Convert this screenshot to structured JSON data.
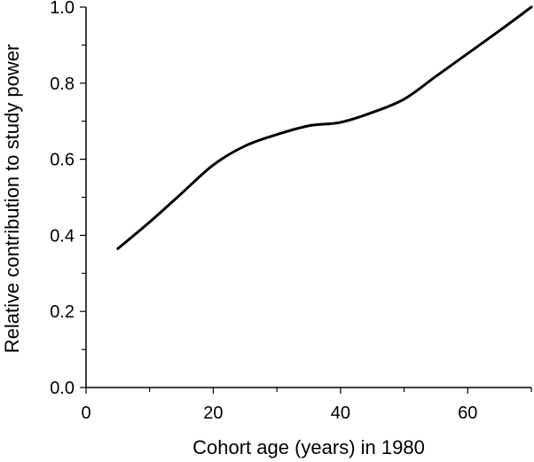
{
  "chart_data": {
    "type": "line",
    "title": "",
    "xlabel": "Cohort age (years) in 1980",
    "ylabel": "Relative contribution to study power",
    "xlim": [
      0,
      70
    ],
    "ylim": [
      0.0,
      1.0
    ],
    "x_ticks_major": [
      0,
      20,
      40,
      60
    ],
    "x_tick_labels": [
      "0",
      "20",
      "40",
      "60"
    ],
    "x_ticks_minor": [
      10,
      30,
      50,
      70
    ],
    "y_ticks_major": [
      0.0,
      0.2,
      0.4,
      0.6,
      0.8,
      1.0
    ],
    "y_tick_labels": [
      "0.0",
      "0.2",
      "0.4",
      "0.6",
      "0.8",
      "1.0"
    ],
    "y_ticks_minor": [
      0.1,
      0.3,
      0.5,
      0.7,
      0.9
    ],
    "grid": false,
    "legend": "none",
    "line_color": "#000000",
    "series": [
      {
        "x": [
          5,
          10,
          15,
          20,
          25,
          30,
          35,
          40,
          45,
          50,
          55,
          60,
          65,
          70
        ],
        "values": [
          0.365,
          0.435,
          0.51,
          0.585,
          0.635,
          0.665,
          0.688,
          0.697,
          0.723,
          0.758,
          0.818,
          0.878,
          0.938,
          1.0
        ]
      }
    ]
  }
}
